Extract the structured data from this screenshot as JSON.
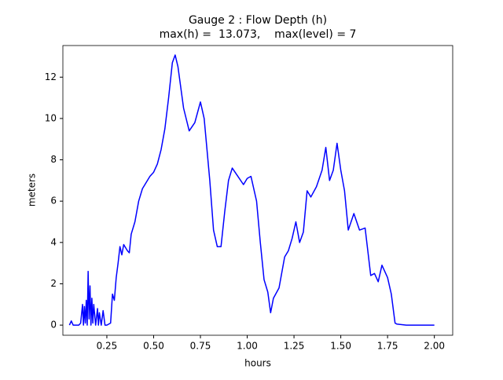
{
  "chart_data": {
    "type": "line",
    "title": "Gauge 2 : Flow Depth (h)",
    "subtitle": "max(h) =  13.073,    max(level) = 7",
    "xlabel": "hours",
    "ylabel": "meters",
    "x": [
      0.05,
      0.06,
      0.07,
      0.1,
      0.11,
      0.12,
      0.125,
      0.13,
      0.135,
      0.14,
      0.145,
      0.15,
      0.155,
      0.16,
      0.165,
      0.17,
      0.175,
      0.18,
      0.19,
      0.2,
      0.205,
      0.21,
      0.22,
      0.23,
      0.24,
      0.25,
      0.27,
      0.28,
      0.29,
      0.3,
      0.31,
      0.32,
      0.33,
      0.34,
      0.36,
      0.37,
      0.38,
      0.4,
      0.42,
      0.44,
      0.46,
      0.48,
      0.5,
      0.52,
      0.54,
      0.56,
      0.58,
      0.6,
      0.615,
      0.63,
      0.66,
      0.69,
      0.72,
      0.75,
      0.77,
      0.8,
      0.82,
      0.84,
      0.86,
      0.88,
      0.9,
      0.92,
      0.95,
      0.98,
      1.0,
      1.02,
      1.05,
      1.07,
      1.09,
      1.11,
      1.125,
      1.14,
      1.17,
      1.2,
      1.22,
      1.24,
      1.26,
      1.28,
      1.3,
      1.32,
      1.34,
      1.37,
      1.4,
      1.42,
      1.44,
      1.46,
      1.48,
      1.5,
      1.52,
      1.54,
      1.57,
      1.6,
      1.63,
      1.66,
      1.68,
      1.7,
      1.72,
      1.75,
      1.77,
      1.79,
      1.8,
      1.85,
      2.0
    ],
    "series": [
      {
        "name": "h",
        "color": "#0000ff",
        "values": [
          0,
          0.2,
          0,
          0,
          0.1,
          1.0,
          0,
          0.9,
          0.1,
          1.2,
          0,
          2.6,
          0.3,
          1.9,
          0,
          1.3,
          0.1,
          1.0,
          0,
          0.8,
          0,
          0.6,
          0,
          0.7,
          0,
          0,
          0.1,
          1.5,
          1.2,
          2.3,
          3.0,
          3.8,
          3.4,
          3.9,
          3.6,
          3.5,
          4.4,
          5.0,
          6.0,
          6.6,
          6.9,
          7.2,
          7.4,
          7.8,
          8.5,
          9.5,
          11.0,
          12.7,
          13.073,
          12.5,
          10.5,
          9.4,
          9.8,
          10.8,
          10.0,
          7.0,
          4.6,
          3.8,
          3.8,
          5.5,
          7.0,
          7.6,
          7.2,
          6.8,
          7.1,
          7.2,
          6.0,
          4.0,
          2.2,
          1.6,
          0.6,
          1.3,
          1.8,
          3.3,
          3.6,
          4.2,
          5.0,
          4.0,
          4.5,
          6.5,
          6.2,
          6.7,
          7.5,
          8.6,
          7.0,
          7.5,
          8.8,
          7.5,
          6.5,
          4.6,
          5.4,
          4.6,
          4.7,
          2.4,
          2.5,
          2.1,
          2.9,
          2.3,
          1.5,
          0.1,
          0.05,
          0,
          0
        ]
      }
    ],
    "xlim": [
      0.015,
      2.098
    ],
    "ylim": [
      -0.49,
      13.53
    ],
    "xticks": [
      0.25,
      {
        "value": 0.5,
        "label": "0.50"
      },
      0.75,
      {
        "value": 1.0,
        "label": "1.00"
      },
      1.25,
      {
        "value": 1.5,
        "label": "1.50"
      },
      1.75,
      {
        "value": 2.0,
        "label": "2.00"
      }
    ],
    "yticks": [
      0,
      2,
      4,
      6,
      8,
      10,
      12
    ]
  }
}
